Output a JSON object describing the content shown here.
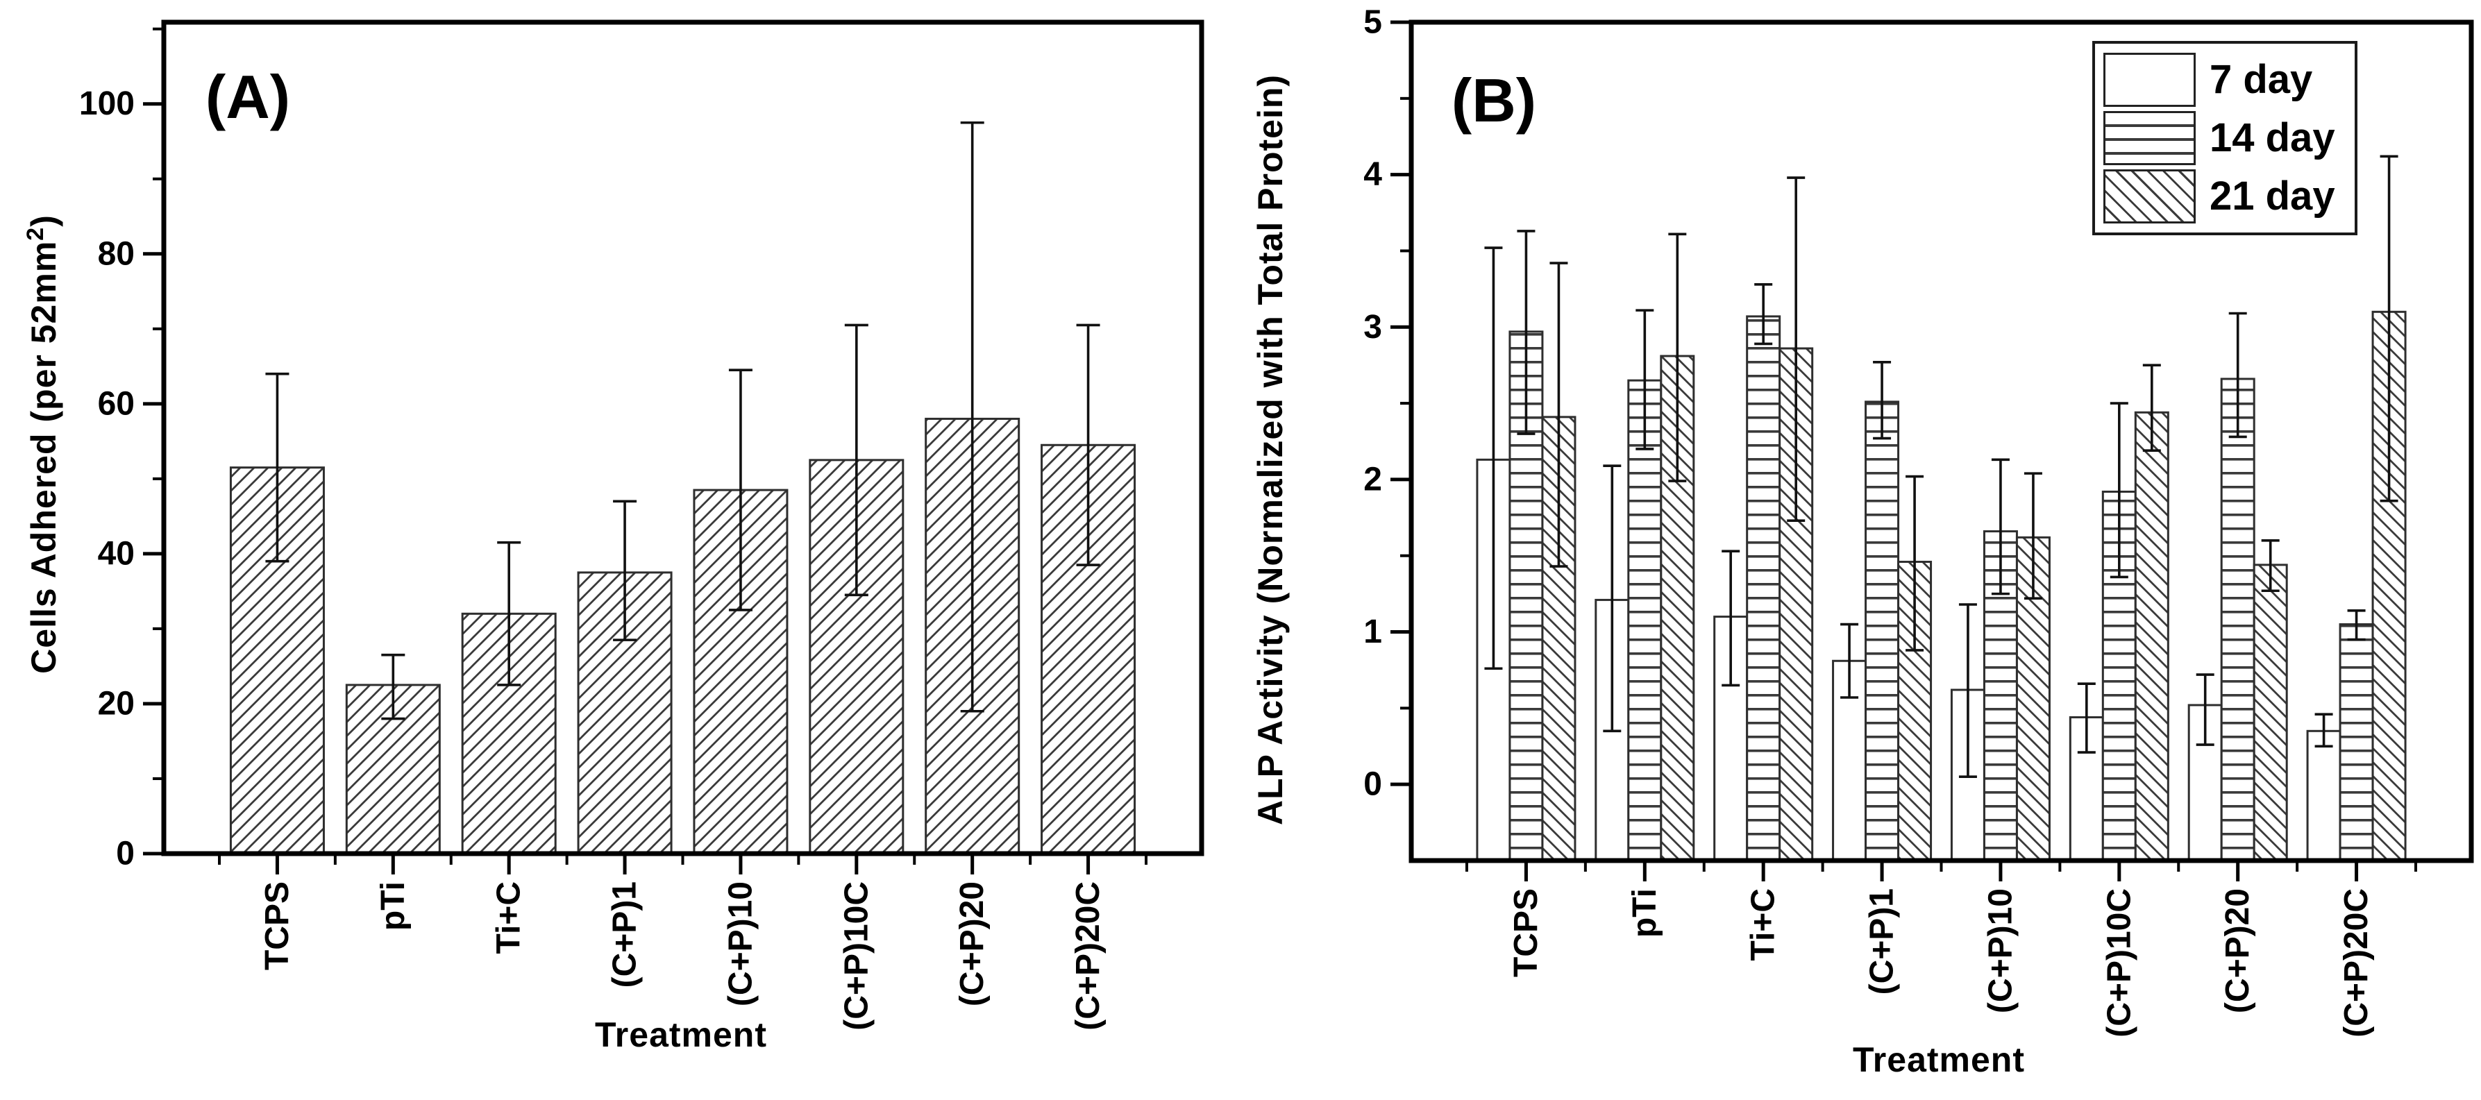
{
  "chart_data": [
    {
      "type": "bar",
      "panel_label": "(A)",
      "xlabel": "Treatment",
      "ylabel_parts": {
        "pre": "Cells Adhered (per 52mm",
        "sup": "2",
        "post": ")"
      },
      "categories": [
        "TCPS",
        "pTi",
        "Ti+C",
        "(C+P)1",
        "(C+P)10",
        "(C+P)10C",
        "(C+P)20",
        "(C+P)20C"
      ],
      "values": [
        51.5,
        22.5,
        32,
        37.5,
        48.5,
        52.5,
        58,
        54.5
      ],
      "error_low": [
        39,
        18,
        22.5,
        28.5,
        32.5,
        34.5,
        19,
        38.5
      ],
      "error_high": [
        64,
        26.5,
        41.5,
        47,
        64.5,
        70.5,
        97.5,
        70.5
      ],
      "ylim": [
        0,
        111
      ],
      "yticks": [
        0,
        20,
        40,
        60,
        80,
        100
      ],
      "yminor": [
        10,
        30,
        50,
        70,
        90,
        110
      ],
      "hatch": "diag-up",
      "grid": "off"
    },
    {
      "type": "grouped-bar",
      "panel_label": "(B)",
      "xlabel": "Treatment",
      "ylabel": "ALP Activity (Normalized with Total Protein)",
      "categories": [
        "TCPS",
        "pTi",
        "Ti+C",
        "(C+P)1",
        "(C+P)10",
        "(C+P)10C",
        "(C+P)20",
        "(C+P)20C"
      ],
      "series": [
        {
          "name": "7 day",
          "hatch": "none",
          "values": [
            2.13,
            1.21,
            1.1,
            0.81,
            0.62,
            0.44,
            0.52,
            0.35
          ],
          "error_low": [
            0.76,
            0.35,
            0.65,
            0.57,
            0.05,
            0.21,
            0.26,
            0.25
          ],
          "error_high": [
            3.52,
            2.09,
            1.53,
            1.05,
            1.18,
            0.66,
            0.72,
            0.46
          ]
        },
        {
          "name": "14 day",
          "hatch": "horizontal",
          "values": [
            2.97,
            2.65,
            3.07,
            2.51,
            1.66,
            1.92,
            2.66,
            1.05
          ],
          "error_low": [
            2.3,
            2.2,
            2.89,
            2.27,
            1.25,
            1.36,
            2.28,
            0.95
          ],
          "error_high": [
            3.63,
            3.11,
            3.28,
            2.77,
            2.13,
            2.5,
            3.09,
            1.14
          ]
        },
        {
          "name": "21 day",
          "hatch": "diag-down",
          "values": [
            2.41,
            2.81,
            2.86,
            1.46,
            1.62,
            2.44,
            1.44,
            3.1
          ],
          "error_low": [
            1.43,
            1.99,
            1.73,
            0.88,
            1.22,
            2.19,
            1.27,
            1.86
          ],
          "error_high": [
            3.42,
            3.61,
            3.98,
            2.02,
            2.04,
            2.75,
            1.6,
            4.12
          ]
        }
      ],
      "ylim": [
        -0.5,
        5
      ],
      "yticks": [
        0,
        1,
        2,
        3,
        4,
        5
      ],
      "yminor": [
        0.5,
        1.5,
        2.5,
        3.5,
        4.5
      ],
      "legend_position": "top-right",
      "grid": "off"
    }
  ],
  "colors": {
    "ink": "#000000",
    "bar_outline": "#2e2e2e",
    "hatch_line": "#3a3a3a",
    "error_bar": "#111111",
    "background": "#ffffff"
  }
}
